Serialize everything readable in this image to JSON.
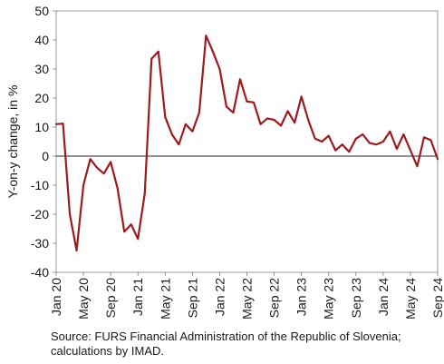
{
  "chart_data": {
    "type": "line",
    "title": "",
    "xlabel": "",
    "ylabel": "Y-on-y change, in %",
    "ylim": [
      -40,
      50
    ],
    "yticks": [
      -40,
      -30,
      -20,
      -10,
      0,
      10,
      20,
      30,
      40,
      50
    ],
    "ytick_labels": [
      "-40",
      "-30",
      "-20",
      "-10",
      "0",
      "10",
      "20",
      "30",
      "40",
      "50"
    ],
    "x_tick_labels": [
      "Jan 20",
      "May 20",
      "Sep 20",
      "Jan 21",
      "May 21",
      "Sep 21",
      "Jan 22",
      "May 22",
      "Sep 22",
      "Jan 23",
      "May 23",
      "Sep 23",
      "Jan 24",
      "May 24",
      "Sep 24"
    ],
    "x_tick_every_months": 4,
    "grid": false,
    "zero_line": true,
    "series": [
      {
        "color": "#9b1b1e",
        "x": [
          "Jan 20",
          "Feb 20",
          "Mar 20",
          "Apr 20",
          "May 20",
          "Jun 20",
          "Jul 20",
          "Aug 20",
          "Sep 20",
          "Oct 20",
          "Nov 20",
          "Dec 20",
          "Jan 21",
          "Feb 21",
          "Mar 21",
          "Apr 21",
          "May 21",
          "Jun 21",
          "Jul 21",
          "Aug 21",
          "Sep 21",
          "Oct 21",
          "Nov 21",
          "Dec 21",
          "Jan 22",
          "Feb 22",
          "Mar 22",
          "Apr 22",
          "May 22",
          "Jun 22",
          "Jul 22",
          "Aug 22",
          "Sep 22",
          "Oct 22",
          "Nov 22",
          "Dec 22",
          "Jan 23",
          "Feb 23",
          "Mar 23",
          "Apr 23",
          "May 23",
          "Jun 23",
          "Jul 23",
          "Aug 23",
          "Sep 23",
          "Oct 23",
          "Nov 23",
          "Dec 23",
          "Jan 24",
          "Feb 24",
          "Mar 24",
          "Apr 24",
          "May 24",
          "Jun 24",
          "Jul 24",
          "Aug 24",
          "Sep 24"
        ],
        "values": [
          11,
          11.2,
          -20,
          -32.5,
          -10,
          -1,
          -4,
          -6,
          -2,
          -11,
          -26,
          -23.5,
          -28.5,
          -13,
          33.5,
          36,
          13.5,
          7.5,
          4,
          11,
          8.5,
          15,
          41.5,
          36,
          30,
          17,
          15,
          26.5,
          18.8,
          18.5,
          11,
          13,
          12.5,
          10.5,
          15.5,
          11.5,
          20.5,
          12.5,
          6,
          5,
          7,
          2,
          4,
          1.5,
          6,
          7.5,
          4.5,
          4,
          5,
          8.5,
          2.5,
          7.5,
          2,
          -3.5,
          6.5,
          5.5,
          -1
        ]
      }
    ]
  },
  "source_text": "Source: FURS Financial Administration of the Republic of Slovenia; calculations by IMAD."
}
